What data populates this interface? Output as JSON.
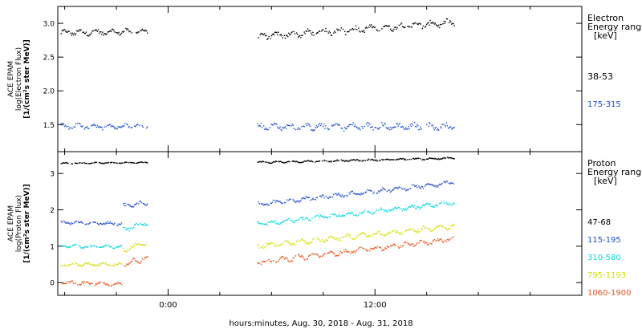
{
  "chart_data": [
    {
      "type": "scatter",
      "panel": "electron",
      "ylabel_lines": [
        "ACE EPAM",
        "log(Electron Flux)",
        "[1/(cm²s ster MeV)]"
      ],
      "ylim": [
        1.1,
        3.25
      ],
      "yticks": [
        1.5,
        2.0,
        2.5,
        3.0
      ],
      "ytick_labels": [
        "1.5",
        "2.0",
        "2.5",
        "3.0"
      ],
      "legend_title_lines": [
        "Electron",
        "Energy ranges",
        "[keV]"
      ],
      "series": [
        {
          "name": "38-53",
          "color": "#000000",
          "segments": [
            {
              "x": [
                -6.2,
                -1.2
              ],
              "y": [
                2.86,
                2.88
              ],
              "amp": 0.05
            },
            {
              "x": [
                5.2,
                16.6
              ],
              "y": [
                2.8,
                3.01
              ],
              "amp": 0.06
            }
          ]
        },
        {
          "name": "175-315",
          "color": "#1f4fd0",
          "segments": [
            {
              "x": [
                -6.2,
                -1.2
              ],
              "y": [
                1.47,
                1.48
              ],
              "amp": 0.05
            },
            {
              "x": [
                5.2,
                16.6
              ],
              "y": [
                1.47,
                1.47
              ],
              "amp": 0.06
            }
          ]
        }
      ]
    },
    {
      "type": "scatter",
      "panel": "proton",
      "ylabel_lines": [
        "ACE EPAM",
        "log(Proton Flux)",
        "[1/(cm²s ster MeV)]"
      ],
      "ylim": [
        -0.35,
        3.6
      ],
      "yticks": [
        0,
        1,
        2,
        3
      ],
      "ytick_labels": [
        "0",
        "1",
        "2",
        "3"
      ],
      "legend_title_lines": [
        "Proton",
        "Energy ranges",
        "[keV]"
      ],
      "series": [
        {
          "name": "47-68",
          "color": "#000000",
          "segments": [
            {
              "x": [
                -6.2,
                -1.2
              ],
              "y": [
                3.28,
                3.3
              ],
              "amp": 0.02
            },
            {
              "x": [
                5.2,
                16.6
              ],
              "y": [
                3.3,
                3.42
              ],
              "amp": 0.03
            }
          ]
        },
        {
          "name": "115-195",
          "color": "#1f4fd0",
          "segments": [
            {
              "x": [
                -6.2,
                -2.7
              ],
              "y": [
                1.65,
                1.62
              ],
              "amp": 0.05
            },
            {
              "x": [
                -2.6,
                -1.2
              ],
              "y": [
                2.1,
                2.2
              ],
              "amp": 0.08
            },
            {
              "x": [
                5.2,
                16.6
              ],
              "y": [
                2.15,
                2.75
              ],
              "amp": 0.07
            }
          ]
        },
        {
          "name": "310-580",
          "color": "#00d8e0",
          "segments": [
            {
              "x": [
                -6.2,
                -2.7
              ],
              "y": [
                1.0,
                0.98
              ],
              "amp": 0.05
            },
            {
              "x": [
                -2.6,
                -1.2
              ],
              "y": [
                1.45,
                1.65
              ],
              "amp": 0.08
            },
            {
              "x": [
                5.2,
                16.6
              ],
              "y": [
                1.6,
                2.2
              ],
              "amp": 0.07
            }
          ]
        },
        {
          "name": "795-1193",
          "color": "#d4e000",
          "segments": [
            {
              "x": [
                -6.2,
                -2.7
              ],
              "y": [
                0.5,
                0.5
              ],
              "amp": 0.06
            },
            {
              "x": [
                -2.6,
                -1.2
              ],
              "y": [
                0.9,
                1.1
              ],
              "amp": 0.08
            },
            {
              "x": [
                5.2,
                16.6
              ],
              "y": [
                1.0,
                1.55
              ],
              "amp": 0.08
            }
          ]
        },
        {
          "name": "1060-1900",
          "color": "#e8561c",
          "segments": [
            {
              "x": [
                -6.2,
                -2.7
              ],
              "y": [
                0.0,
                -0.05
              ],
              "amp": 0.06
            },
            {
              "x": [
                -2.6,
                -1.2
              ],
              "y": [
                0.5,
                0.7
              ],
              "amp": 0.1
            },
            {
              "x": [
                5.2,
                16.6
              ],
              "y": [
                0.55,
                1.2
              ],
              "amp": 0.08
            }
          ]
        }
      ]
    }
  ],
  "x_axis": {
    "xlim": [
      -6.4,
      24
    ],
    "major_ticks": [
      0,
      12
    ],
    "major_tick_labels": [
      "0:00",
      "12:00"
    ],
    "minor_ticks": [
      -6,
      -3,
      3,
      6,
      9,
      15,
      18,
      21
    ],
    "xlabel": "hours:minutes, Aug. 30, 2018 - Aug. 31, 2018"
  }
}
